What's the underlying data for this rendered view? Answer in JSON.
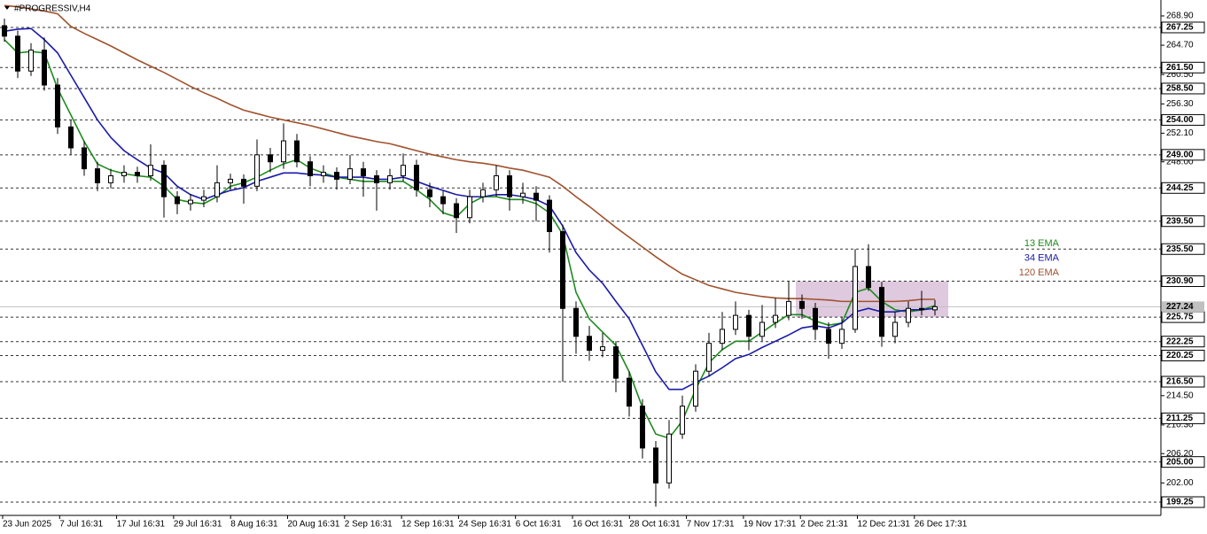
{
  "chart_data": {
    "type": "candlestick",
    "title": "#PROGRESSIV,H4",
    "ylim": [
      197.6,
      270.8
    ],
    "yticks": [
      {
        "value": 268.9,
        "label": "268.90"
      },
      {
        "value": 264.7,
        "label": "264.70"
      },
      {
        "value": 260.5,
        "label": "260.50"
      },
      {
        "value": 256.3,
        "label": "256.30"
      },
      {
        "value": 252.1,
        "label": "252.10"
      },
      {
        "value": 248,
        "label": "248.00"
      },
      {
        "value": 214.5,
        "label": "214.50"
      },
      {
        "value": 210.3,
        "label": "210.30"
      },
      {
        "value": 206.2,
        "label": "206.20"
      },
      {
        "value": 202,
        "label": "202.00"
      }
    ],
    "levels": [
      {
        "value": 267.25,
        "label": "267.25"
      },
      {
        "value": 261.5,
        "label": "261.50"
      },
      {
        "value": 258.5,
        "label": "258.50"
      },
      {
        "value": 254,
        "label": "254.00"
      },
      {
        "value": 249,
        "label": "249.00"
      },
      {
        "value": 244.25,
        "label": "244.25"
      },
      {
        "value": 239.5,
        "label": "239.50"
      },
      {
        "value": 235.5,
        "label": "235.50"
      },
      {
        "value": 230.9,
        "label": "230.90"
      },
      {
        "value": 225.75,
        "label": "225.75"
      },
      {
        "value": 222.25,
        "label": "222.25"
      },
      {
        "value": 220.25,
        "label": "220.25"
      },
      {
        "value": 216.5,
        "label": "216.50"
      },
      {
        "value": 211.25,
        "label": "211.25"
      },
      {
        "value": 205,
        "label": "205.00"
      },
      {
        "value": 199.25,
        "label": "199.25"
      }
    ],
    "current_price": 227.24,
    "zone": {
      "high": 230.9,
      "low": 225.75,
      "color": "#d8bfd8"
    },
    "x_labels": [
      "23 Jun 2025",
      "7 Jul 16:31",
      "17 Jul 16:31",
      "29 Jul 16:31",
      "8 Aug 16:31",
      "20 Aug 16:31",
      "2 Sep 16:31",
      "12 Sep 16:31",
      "24 Sep 16:31",
      "6 Oct 16:31",
      "16 Oct 16:31",
      "28 Oct 16:31",
      "7 Nov 17:31",
      "19 Nov 17:31",
      "2 Dec 21:31",
      "12 Dec 21:31",
      "26 Dec 17:31"
    ],
    "candles": [
      [
        267.5,
        268.5,
        265.2,
        266
      ],
      [
        266,
        266.8,
        260,
        261
      ],
      [
        261,
        265,
        260.3,
        264
      ],
      [
        264,
        265.8,
        258.2,
        259
      ],
      [
        259,
        260,
        252,
        253
      ],
      [
        253,
        254,
        249,
        250
      ],
      [
        250,
        251,
        246,
        247
      ],
      [
        247,
        248,
        243.8,
        245
      ],
      [
        245,
        247,
        244.2,
        246
      ],
      [
        246,
        247.5,
        245,
        246.5
      ],
      [
        246.5,
        247.3,
        245,
        246
      ],
      [
        246,
        250.5,
        245.3,
        247.5
      ],
      [
        247.5,
        248.2,
        240,
        243
      ],
      [
        243,
        243.8,
        240.5,
        242
      ],
      [
        242,
        243.4,
        241,
        242.5
      ],
      [
        242.5,
        244,
        241.5,
        243
      ],
      [
        243,
        247.5,
        242.2,
        245
      ],
      [
        245,
        246.3,
        244,
        245.5
      ],
      [
        245.5,
        246.2,
        242,
        244.5
      ],
      [
        244.5,
        251.2,
        243.8,
        249
      ],
      [
        249,
        250,
        246.5,
        248
      ],
      [
        248,
        253.5,
        247,
        251
      ],
      [
        251,
        252,
        247.2,
        248
      ],
      [
        248,
        248.8,
        244.5,
        246
      ],
      [
        246,
        247.5,
        245,
        246.5
      ],
      [
        246.5,
        247.2,
        244,
        245.5
      ],
      [
        245.5,
        249,
        244.8,
        247
      ],
      [
        247,
        248,
        243,
        246
      ],
      [
        246,
        246.8,
        241,
        245
      ],
      [
        245,
        247,
        244,
        246
      ],
      [
        246,
        249.2,
        245.2,
        247.5
      ],
      [
        247.5,
        248.3,
        243,
        244
      ],
      [
        244,
        245,
        241.5,
        243
      ],
      [
        243,
        243.8,
        240.5,
        242
      ],
      [
        242,
        242.8,
        237.8,
        240
      ],
      [
        240,
        244,
        239.2,
        243
      ],
      [
        243,
        245,
        242.2,
        244
      ],
      [
        244,
        247.5,
        243,
        246
      ],
      [
        246,
        246.8,
        241,
        243
      ],
      [
        243,
        245,
        242,
        243.5
      ],
      [
        243.5,
        244.5,
        239.5,
        242.5
      ],
      [
        242.5,
        243.2,
        235,
        238
      ],
      [
        238,
        239,
        216.5,
        227
      ],
      [
        227,
        228,
        220.5,
        223
      ],
      [
        223,
        224.5,
        219.5,
        221
      ],
      [
        221,
        223.5,
        220,
        221.5
      ],
      [
        221.5,
        222.3,
        215,
        217
      ],
      [
        217,
        218,
        211.5,
        213
      ],
      [
        213,
        214,
        205.5,
        207
      ],
      [
        207,
        208,
        198.6,
        202
      ],
      [
        202,
        211,
        201.2,
        209
      ],
      [
        209,
        214.5,
        208.3,
        213
      ],
      [
        213,
        219,
        212.2,
        218
      ],
      [
        218,
        223.5,
        217.2,
        222
      ],
      [
        222,
        226.5,
        221,
        224
      ],
      [
        224,
        228,
        223.2,
        226
      ],
      [
        226,
        226.8,
        221,
        223
      ],
      [
        223,
        227.5,
        222.3,
        225
      ],
      [
        225,
        228.5,
        224.2,
        226
      ],
      [
        226,
        230.9,
        225.3,
        228
      ],
      [
        228,
        229,
        225.5,
        227
      ],
      [
        227,
        227.8,
        222.5,
        224
      ],
      [
        224,
        225,
        219.8,
        222
      ],
      [
        222,
        225.8,
        221.2,
        224
      ],
      [
        224,
        235.5,
        223.5,
        233
      ],
      [
        233,
        236.2,
        229.5,
        230
      ],
      [
        230,
        230.8,
        221.5,
        223
      ],
      [
        223,
        226.5,
        222,
        225
      ],
      [
        225,
        228,
        224.3,
        227
      ],
      [
        227,
        229.5,
        226,
        226.8
      ],
      [
        226.8,
        228.2,
        226,
        227.24
      ]
    ],
    "series": [
      {
        "name": "13 EMA",
        "color": "#1e8a1e",
        "values": [
          265.5,
          263.6,
          263.8,
          263.6,
          258.5,
          254.7,
          250.9,
          247.7,
          246.8,
          246.3,
          246,
          245.8,
          244.5,
          242.6,
          242.2,
          242,
          243,
          244.5,
          245,
          245.8,
          246.8,
          247.7,
          248.3,
          247.1,
          246.4,
          245.8,
          245.5,
          245.2,
          245.2,
          245.2,
          245.2,
          244,
          242.6,
          240.7,
          240.1,
          242,
          243,
          243,
          242.6,
          242.6,
          242,
          240.7,
          237.6,
          229.3,
          225.5,
          223.6,
          221.7,
          217.9,
          212.8,
          209,
          208.4,
          210.9,
          215.4,
          219.2,
          221.1,
          222.3,
          222.3,
          223.6,
          224.9,
          226.1,
          226.1,
          225.2,
          224.6,
          224.9,
          229.3,
          229.9,
          228,
          226.8,
          226.5,
          226.8,
          227.4
        ]
      },
      {
        "name": "34 EMA",
        "color": "#1a1aa8",
        "values": [
          266.7,
          267,
          267.1,
          265.5,
          263.6,
          260.4,
          257.2,
          254,
          251.5,
          249.6,
          248.3,
          247.1,
          246.4,
          244.5,
          243.3,
          242.6,
          243.3,
          243.9,
          244.3,
          245.2,
          245.8,
          246.4,
          246.4,
          246.2,
          246.1,
          245.8,
          245.8,
          245.8,
          245.5,
          245.5,
          245.8,
          245.2,
          244.5,
          243.9,
          243.3,
          243,
          243,
          243.3,
          243.3,
          243,
          242.6,
          241.7,
          238.8,
          235,
          232.5,
          230.6,
          228,
          225.5,
          221.7,
          217.9,
          215.4,
          215.4,
          216.4,
          217.3,
          218.5,
          219.8,
          220.4,
          221.4,
          222.3,
          223.2,
          224.2,
          224.5,
          224.2,
          224.9,
          226.5,
          227,
          226.5,
          226.5,
          226.8,
          226.8,
          227
        ]
      },
      {
        "name": "120 EMA",
        "color": "#a0522d",
        "values": [
          270.4,
          270.2,
          269.9,
          269.6,
          269.2,
          267.4,
          266.4,
          265.5,
          264.6,
          263.6,
          262.6,
          261.7,
          260.8,
          259.8,
          258.8,
          257.9,
          257.1,
          256.2,
          255.4,
          254.9,
          254.4,
          254,
          253.6,
          253.2,
          252.7,
          252.2,
          251.7,
          251.3,
          250.9,
          250.6,
          250.1,
          249.6,
          249.1,
          248.7,
          248.3,
          248,
          247.8,
          247.5,
          247.1,
          246.8,
          246.3,
          245.8,
          244.5,
          243,
          241.6,
          240.1,
          238.6,
          237.2,
          235.8,
          234.4,
          233.1,
          231.9,
          231.1,
          230.3,
          229.8,
          229.3,
          229,
          228.7,
          228.5,
          228.4,
          228.4,
          228.3,
          228.2,
          228,
          228,
          228,
          228,
          228,
          228.1,
          228.3,
          228.3
        ]
      }
    ]
  }
}
